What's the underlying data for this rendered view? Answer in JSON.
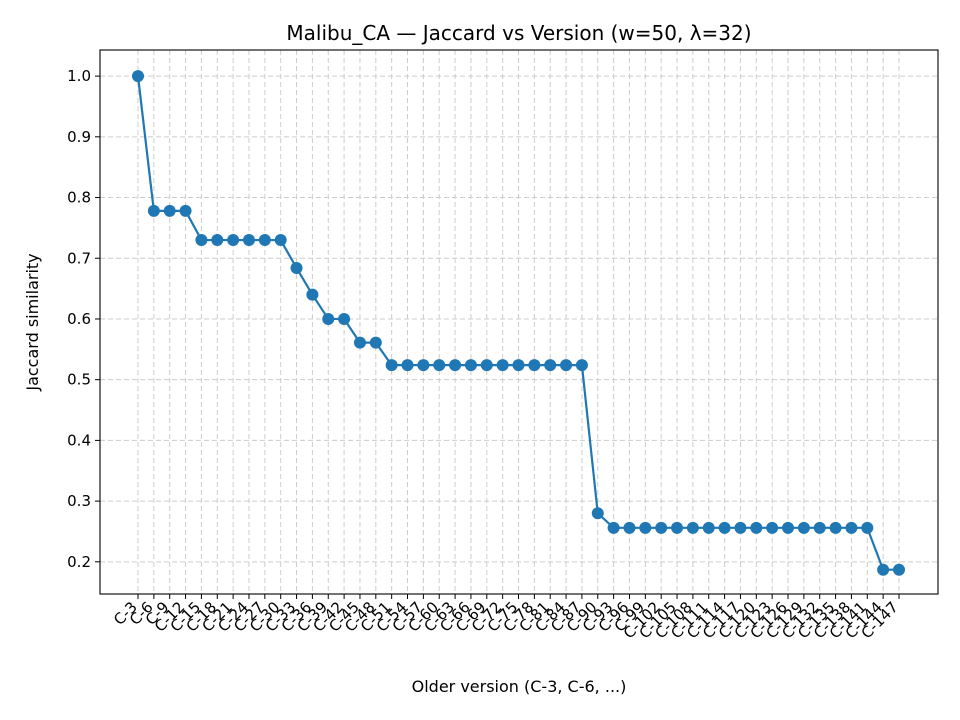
{
  "chart_data": {
    "type": "line",
    "title": "Malibu_CA — Jaccard vs Version (w=50, λ=32)",
    "xlabel": "Older version (C-3, C-6, ...)",
    "ylabel": "Jaccard similarity",
    "ylim": [
      0.147,
      1.043
    ],
    "yticks": [
      0.2,
      0.3,
      0.4,
      0.5,
      0.6,
      0.7,
      0.8,
      0.9,
      1.0
    ],
    "grid": true,
    "line_color": "#1f77b4",
    "categories": [
      "C-3",
      "C-6",
      "C-9",
      "C-12",
      "C-15",
      "C-18",
      "C-21",
      "C-24",
      "C-27",
      "C-30",
      "C-33",
      "C-36",
      "C-39",
      "C-42",
      "C-45",
      "C-48",
      "C-51",
      "C-54",
      "C-57",
      "C-60",
      "C-63",
      "C-66",
      "C-69",
      "C-72",
      "C-75",
      "C-78",
      "C-81",
      "C-84",
      "C-87",
      "C-90",
      "C-93",
      "C-96",
      "C-99",
      "C-102",
      "C-105",
      "C-108",
      "C-111",
      "C-114",
      "C-117",
      "C-120",
      "C-123",
      "C-126",
      "C-129",
      "C-132",
      "C-135",
      "C-138",
      "C-141",
      "C-144",
      "C-147"
    ],
    "values": [
      1.0,
      0.778,
      0.778,
      0.778,
      0.73,
      0.73,
      0.73,
      0.73,
      0.73,
      0.73,
      0.684,
      0.64,
      0.6,
      0.6,
      0.561,
      0.561,
      0.524,
      0.524,
      0.524,
      0.524,
      0.524,
      0.524,
      0.524,
      0.524,
      0.524,
      0.524,
      0.524,
      0.524,
      0.524,
      0.28,
      0.256,
      0.256,
      0.256,
      0.256,
      0.256,
      0.256,
      0.256,
      0.256,
      0.256,
      0.256,
      0.256,
      0.256,
      0.256,
      0.256,
      0.256,
      0.256,
      0.256,
      0.187,
      0.187
    ]
  }
}
